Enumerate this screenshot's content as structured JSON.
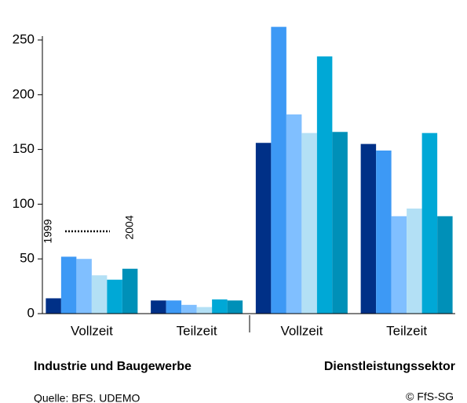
{
  "chart_data": {
    "type": "bar",
    "categories": [
      "Vollzeit",
      "Teilzeit",
      "Vollzeit",
      "Teilzeit"
    ],
    "series": [
      {
        "color": "#003087",
        "values": [
          14,
          12,
          156,
          155
        ]
      },
      {
        "color": "#3d99f5",
        "values": [
          52,
          12,
          262,
          149
        ]
      },
      {
        "color": "#80bfff",
        "values": [
          50,
          8,
          182,
          89
        ]
      },
      {
        "color": "#b3e0f5",
        "values": [
          35,
          6,
          165,
          96
        ]
      },
      {
        "color": "#00a8d6",
        "values": [
          31,
          13,
          235,
          165
        ]
      },
      {
        "color": "#0090b8",
        "values": [
          41,
          12,
          166,
          89
        ]
      }
    ],
    "ylim": [
      0,
      250
    ],
    "yticks": [
      0,
      50,
      100,
      150,
      200,
      250
    ],
    "annotations": [
      "1999",
      "2004"
    ],
    "group_labels": [
      "Industrie und Baugewerbe",
      "Dienstleistungssektor"
    ],
    "source": "Quelle: BFS. UDEMO",
    "credit": "© FfS-SG"
  }
}
